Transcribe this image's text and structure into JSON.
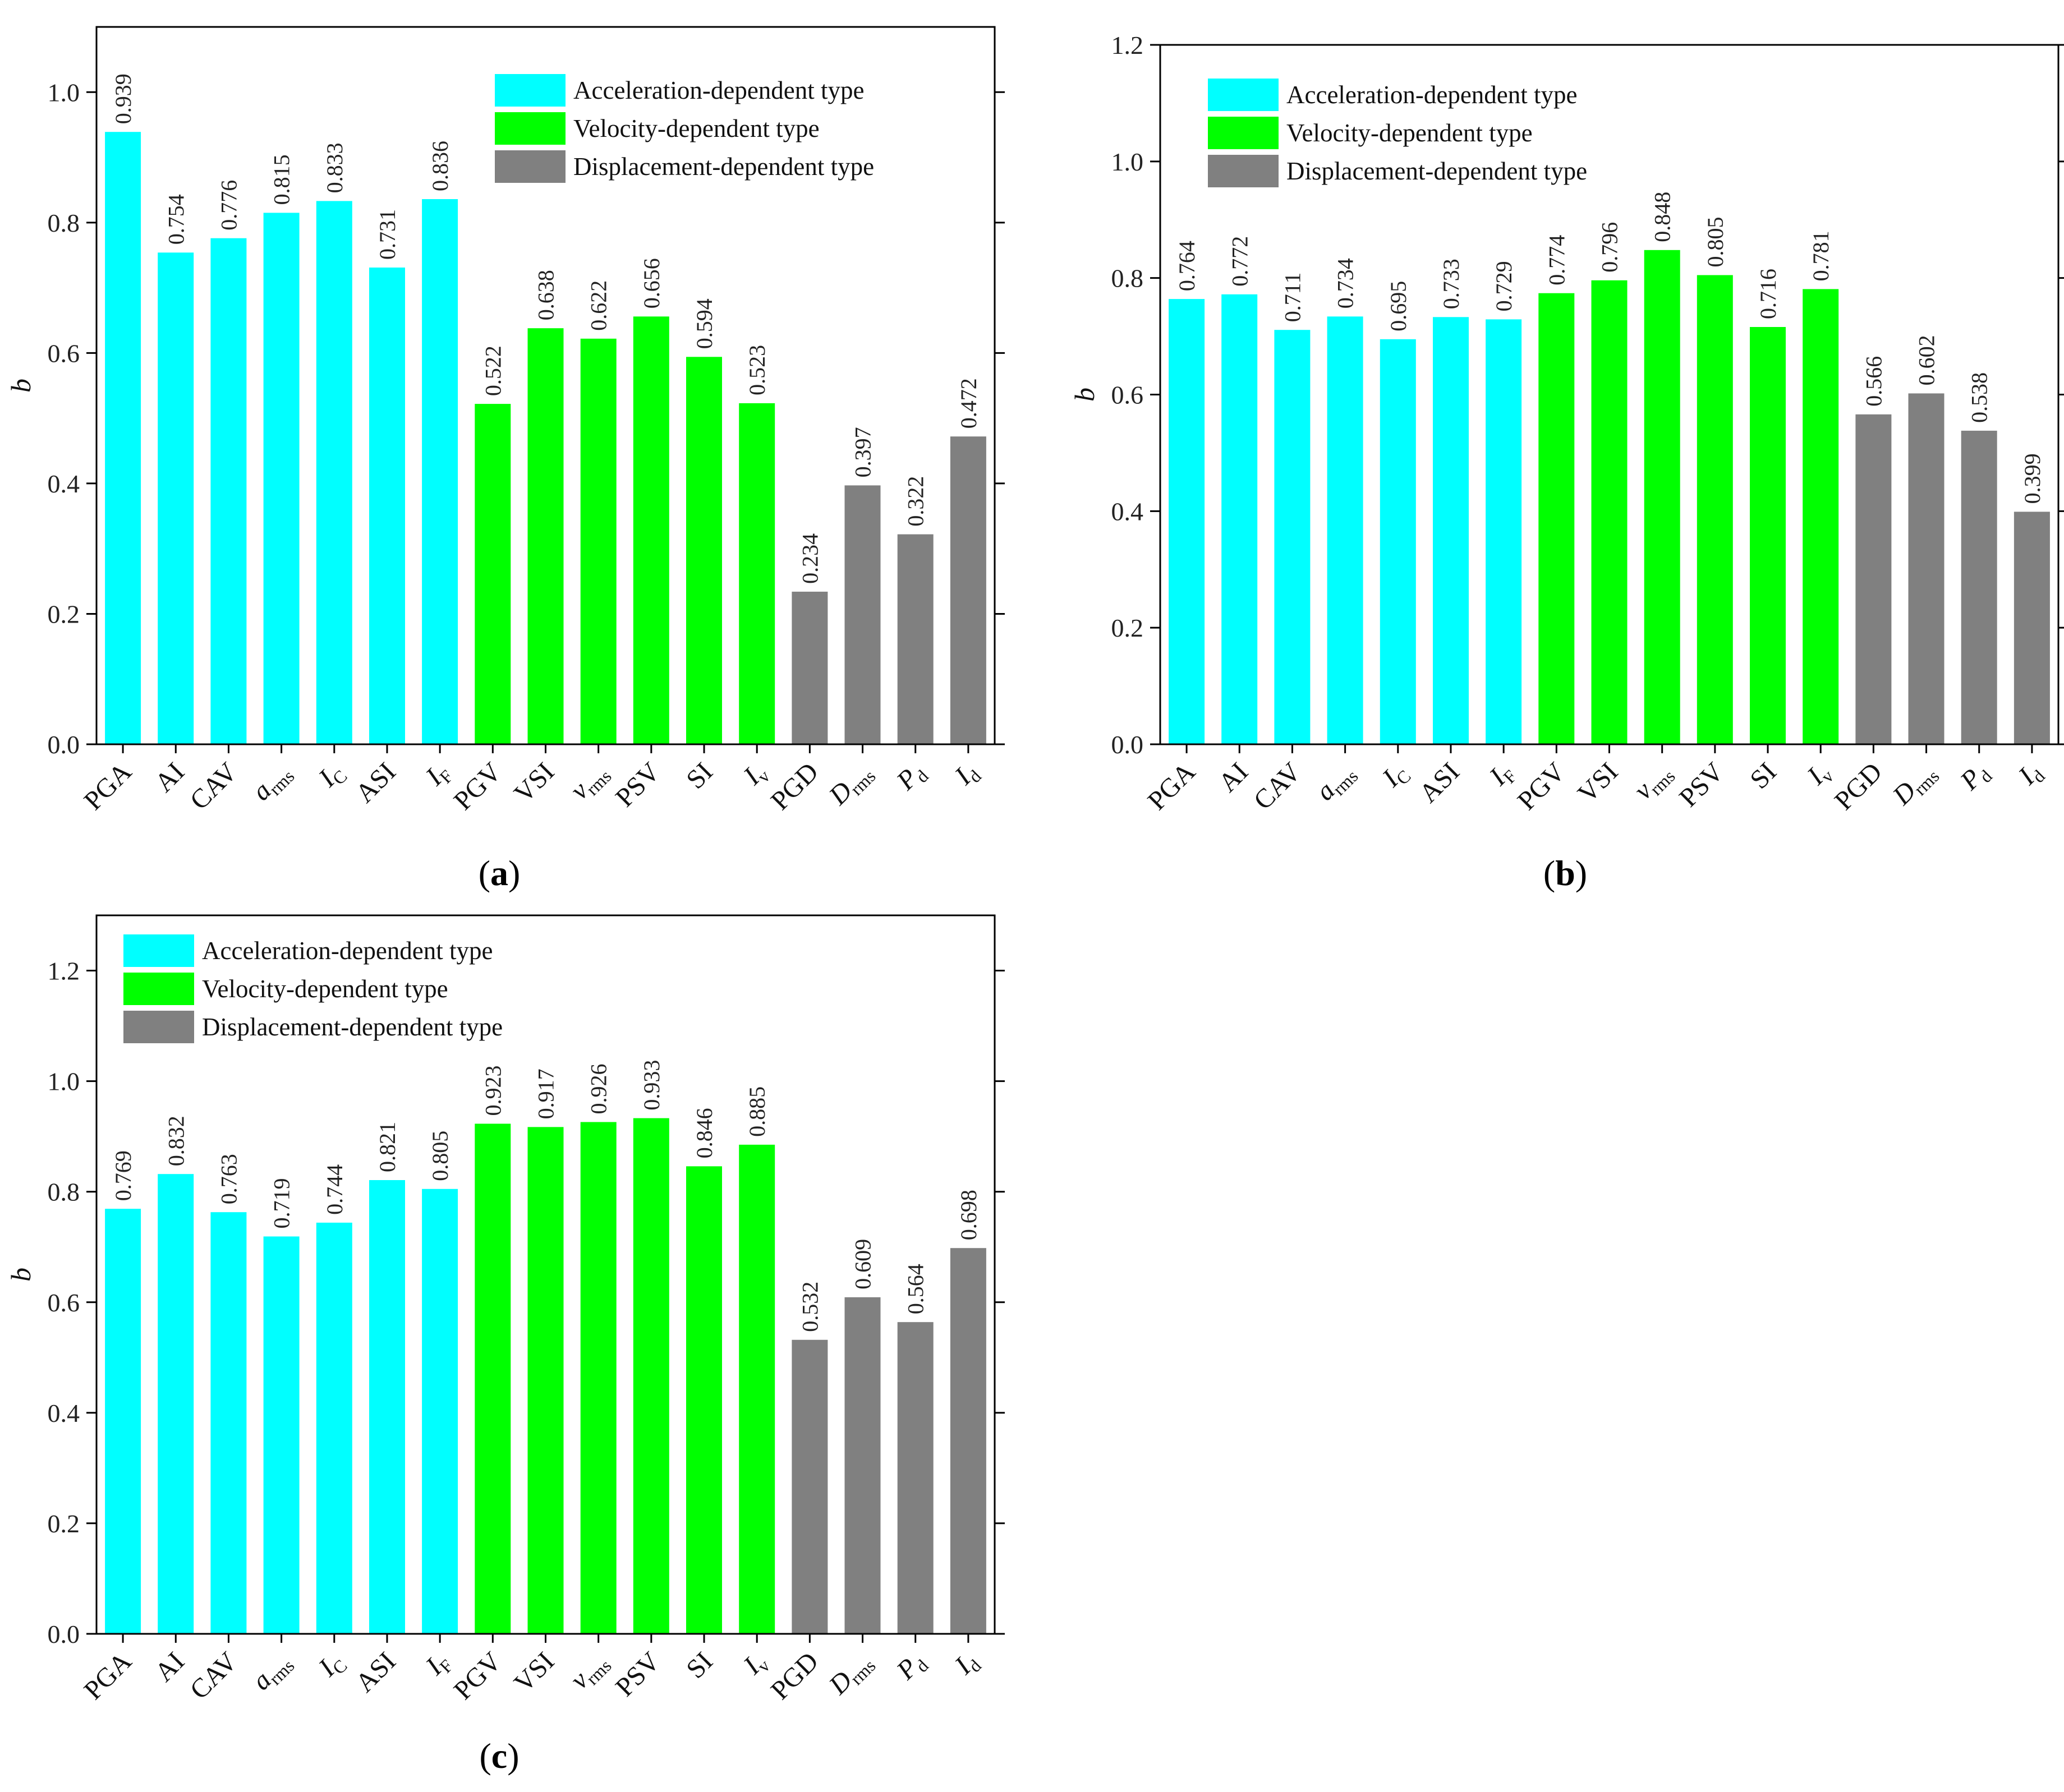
{
  "colors": {
    "acceleration": "#00ffff",
    "velocity": "#00ff00",
    "displacement": "#808080"
  },
  "chart_data": [
    {
      "panel": "a",
      "type": "bar",
      "ylabel": "b",
      "ylim": [
        0,
        1.1
      ],
      "yticks": [
        "0.0",
        "0.2",
        "0.4",
        "0.6",
        "0.8",
        "1.0"
      ],
      "legend_position": "top-right",
      "legend": [
        "Acceleration-dependent type",
        "Velocity-dependent type",
        "Displacement-dependent type"
      ],
      "categories": [
        {
          "main": "PGA",
          "sub": "",
          "italic": false
        },
        {
          "main": "AI",
          "sub": "",
          "italic": false
        },
        {
          "main": "CAV",
          "sub": "",
          "italic": false
        },
        {
          "main": "a",
          "sub": "rms",
          "italic": true
        },
        {
          "main": "I",
          "sub": "C",
          "italic": true
        },
        {
          "main": "ASI",
          "sub": "",
          "italic": false
        },
        {
          "main": "I",
          "sub": "F",
          "italic": true
        },
        {
          "main": "PGV",
          "sub": "",
          "italic": false
        },
        {
          "main": "VSI",
          "sub": "",
          "italic": false
        },
        {
          "main": "v",
          "sub": "rms",
          "italic": true
        },
        {
          "main": "PSV",
          "sub": "",
          "italic": false
        },
        {
          "main": "SI",
          "sub": "",
          "italic": false
        },
        {
          "main": "I",
          "sub": "v",
          "italic": true
        },
        {
          "main": "PGD",
          "sub": "",
          "italic": false
        },
        {
          "main": "D",
          "sub": "rms",
          "italic": true
        },
        {
          "main": "P",
          "sub": "d",
          "italic": true
        },
        {
          "main": "I",
          "sub": "d",
          "italic": true
        }
      ],
      "groups": [
        "acceleration",
        "acceleration",
        "acceleration",
        "acceleration",
        "acceleration",
        "acceleration",
        "acceleration",
        "velocity",
        "velocity",
        "velocity",
        "velocity",
        "velocity",
        "velocity",
        "displacement",
        "displacement",
        "displacement",
        "displacement"
      ],
      "values": [
        0.939,
        0.754,
        0.776,
        0.815,
        0.833,
        0.731,
        0.836,
        0.522,
        0.638,
        0.622,
        0.656,
        0.594,
        0.523,
        0.234,
        0.397,
        0.322,
        0.472
      ],
      "labels": [
        "0.939",
        "0.754",
        "0.776",
        "0.815",
        "0.833",
        "0.731",
        "0.836",
        "0.522",
        "0.638",
        "0.622",
        "0.656",
        "0.594",
        "0.523",
        "0.234",
        "0.397",
        "0.322",
        "0.472"
      ]
    },
    {
      "panel": "b",
      "type": "bar",
      "ylabel": "b",
      "ylim": [
        0,
        1.2
      ],
      "yticks": [
        "0.0",
        "0.2",
        "0.4",
        "0.6",
        "0.8",
        "1.0",
        "1.2"
      ],
      "legend_position": "top-left",
      "legend": [
        "Acceleration-dependent type",
        "Velocity-dependent type",
        "Displacement-dependent type"
      ],
      "categories": [
        {
          "main": "PGA",
          "sub": "",
          "italic": false
        },
        {
          "main": "AI",
          "sub": "",
          "italic": false
        },
        {
          "main": "CAV",
          "sub": "",
          "italic": false
        },
        {
          "main": "a",
          "sub": "rms",
          "italic": true
        },
        {
          "main": "I",
          "sub": "C",
          "italic": true
        },
        {
          "main": "ASI",
          "sub": "",
          "italic": false
        },
        {
          "main": "I",
          "sub": "F",
          "italic": true
        },
        {
          "main": "PGV",
          "sub": "",
          "italic": false
        },
        {
          "main": "VSI",
          "sub": "",
          "italic": false
        },
        {
          "main": "v",
          "sub": "rms",
          "italic": true
        },
        {
          "main": "PSV",
          "sub": "",
          "italic": false
        },
        {
          "main": "SI",
          "sub": "",
          "italic": false
        },
        {
          "main": "I",
          "sub": "v",
          "italic": true
        },
        {
          "main": "PGD",
          "sub": "",
          "italic": false
        },
        {
          "main": "D",
          "sub": "rms",
          "italic": true
        },
        {
          "main": "P",
          "sub": "d",
          "italic": true
        },
        {
          "main": "I",
          "sub": "d",
          "italic": true
        }
      ],
      "groups": [
        "acceleration",
        "acceleration",
        "acceleration",
        "acceleration",
        "acceleration",
        "acceleration",
        "acceleration",
        "velocity",
        "velocity",
        "velocity",
        "velocity",
        "velocity",
        "velocity",
        "displacement",
        "displacement",
        "displacement",
        "displacement"
      ],
      "values": [
        0.764,
        0.772,
        0.711,
        0.734,
        0.695,
        0.733,
        0.729,
        0.774,
        0.796,
        0.848,
        0.805,
        0.716,
        0.781,
        0.566,
        0.602,
        0.538,
        0.399
      ],
      "labels": [
        "0.764",
        "0.772",
        "0.711",
        "0.734",
        "0.695",
        "0.733",
        "0.729",
        "0.774",
        "0.796",
        "0.848",
        "0.805",
        "0.716",
        "0.781",
        "0.566",
        "0.602",
        "0.538",
        "0.399"
      ]
    },
    {
      "panel": "c",
      "type": "bar",
      "ylabel": "b",
      "ylim": [
        0,
        1.3
      ],
      "yticks": [
        "0.0",
        "0.2",
        "0.4",
        "0.6",
        "0.8",
        "1.0",
        "1.2"
      ],
      "legend_position": "top-left",
      "legend": [
        "Acceleration-dependent type",
        "Velocity-dependent type",
        "Displacement-dependent type"
      ],
      "categories": [
        {
          "main": "PGA",
          "sub": "",
          "italic": false
        },
        {
          "main": "AI",
          "sub": "",
          "italic": false
        },
        {
          "main": "CAV",
          "sub": "",
          "italic": false
        },
        {
          "main": "a",
          "sub": "rms",
          "italic": true
        },
        {
          "main": "I",
          "sub": "C",
          "italic": true
        },
        {
          "main": "ASI",
          "sub": "",
          "italic": false
        },
        {
          "main": "I",
          "sub": "F",
          "italic": true
        },
        {
          "main": "PGV",
          "sub": "",
          "italic": false
        },
        {
          "main": "VSI",
          "sub": "",
          "italic": false
        },
        {
          "main": "v",
          "sub": "rms",
          "italic": true
        },
        {
          "main": "PSV",
          "sub": "",
          "italic": false
        },
        {
          "main": "SI",
          "sub": "",
          "italic": false
        },
        {
          "main": "I",
          "sub": "v",
          "italic": true
        },
        {
          "main": "PGD",
          "sub": "",
          "italic": false
        },
        {
          "main": "D",
          "sub": "rms",
          "italic": true
        },
        {
          "main": "P",
          "sub": "d",
          "italic": true
        },
        {
          "main": "I",
          "sub": "d",
          "italic": true
        }
      ],
      "groups": [
        "acceleration",
        "acceleration",
        "acceleration",
        "acceleration",
        "acceleration",
        "acceleration",
        "acceleration",
        "velocity",
        "velocity",
        "velocity",
        "velocity",
        "velocity",
        "velocity",
        "displacement",
        "displacement",
        "displacement",
        "displacement"
      ],
      "values": [
        0.769,
        0.832,
        0.763,
        0.719,
        0.744,
        0.821,
        0.805,
        0.923,
        0.917,
        0.926,
        0.933,
        0.846,
        0.885,
        0.532,
        0.609,
        0.564,
        0.698
      ],
      "labels": [
        "0.769",
        "0.832",
        "0.763",
        "0.719",
        "0.744",
        "0.821",
        "0.805",
        "0.923",
        "0.917",
        "0.926",
        "0.933",
        "0.846",
        "0.885",
        "0.532",
        "0.609",
        "0.564",
        "0.698"
      ]
    }
  ],
  "captions": [
    {
      "open": "(",
      "letter": "a",
      "close": ")"
    },
    {
      "open": "(",
      "letter": "b",
      "close": ")"
    },
    {
      "open": "(",
      "letter": "c",
      "close": ")"
    }
  ]
}
